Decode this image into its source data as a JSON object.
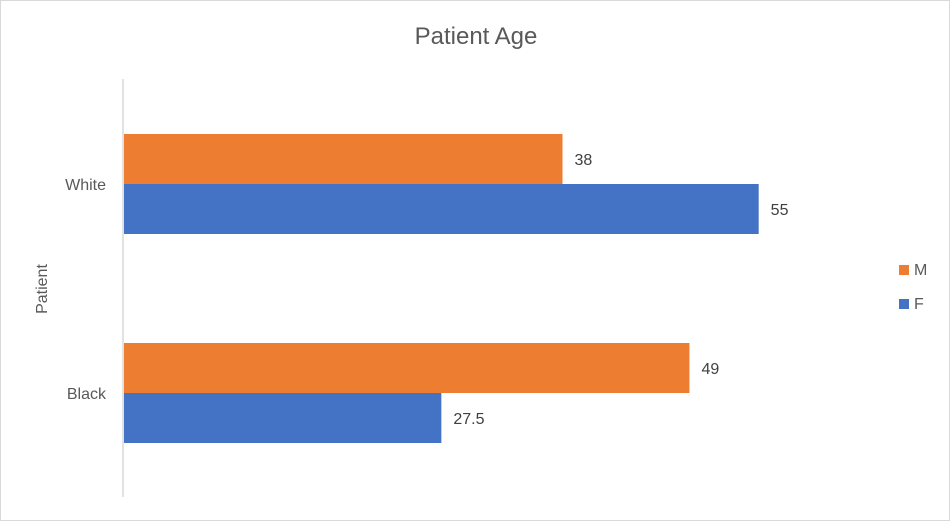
{
  "chart_data": {
    "type": "bar",
    "orientation": "horizontal",
    "title": "Patient Age",
    "xlabel": "",
    "ylabel": "Patient",
    "categories": [
      "White",
      "Black"
    ],
    "series": [
      {
        "name": "M",
        "color": "#ED7D31",
        "values": [
          38,
          49
        ]
      },
      {
        "name": "F",
        "color": "#4472C4",
        "values": [
          55,
          27.5
        ]
      }
    ],
    "data_labels": [
      [
        "38",
        "49"
      ],
      [
        "55",
        "27.5"
      ]
    ],
    "xlim": [
      0,
      63
    ],
    "grid": false,
    "legend_position": "right"
  }
}
